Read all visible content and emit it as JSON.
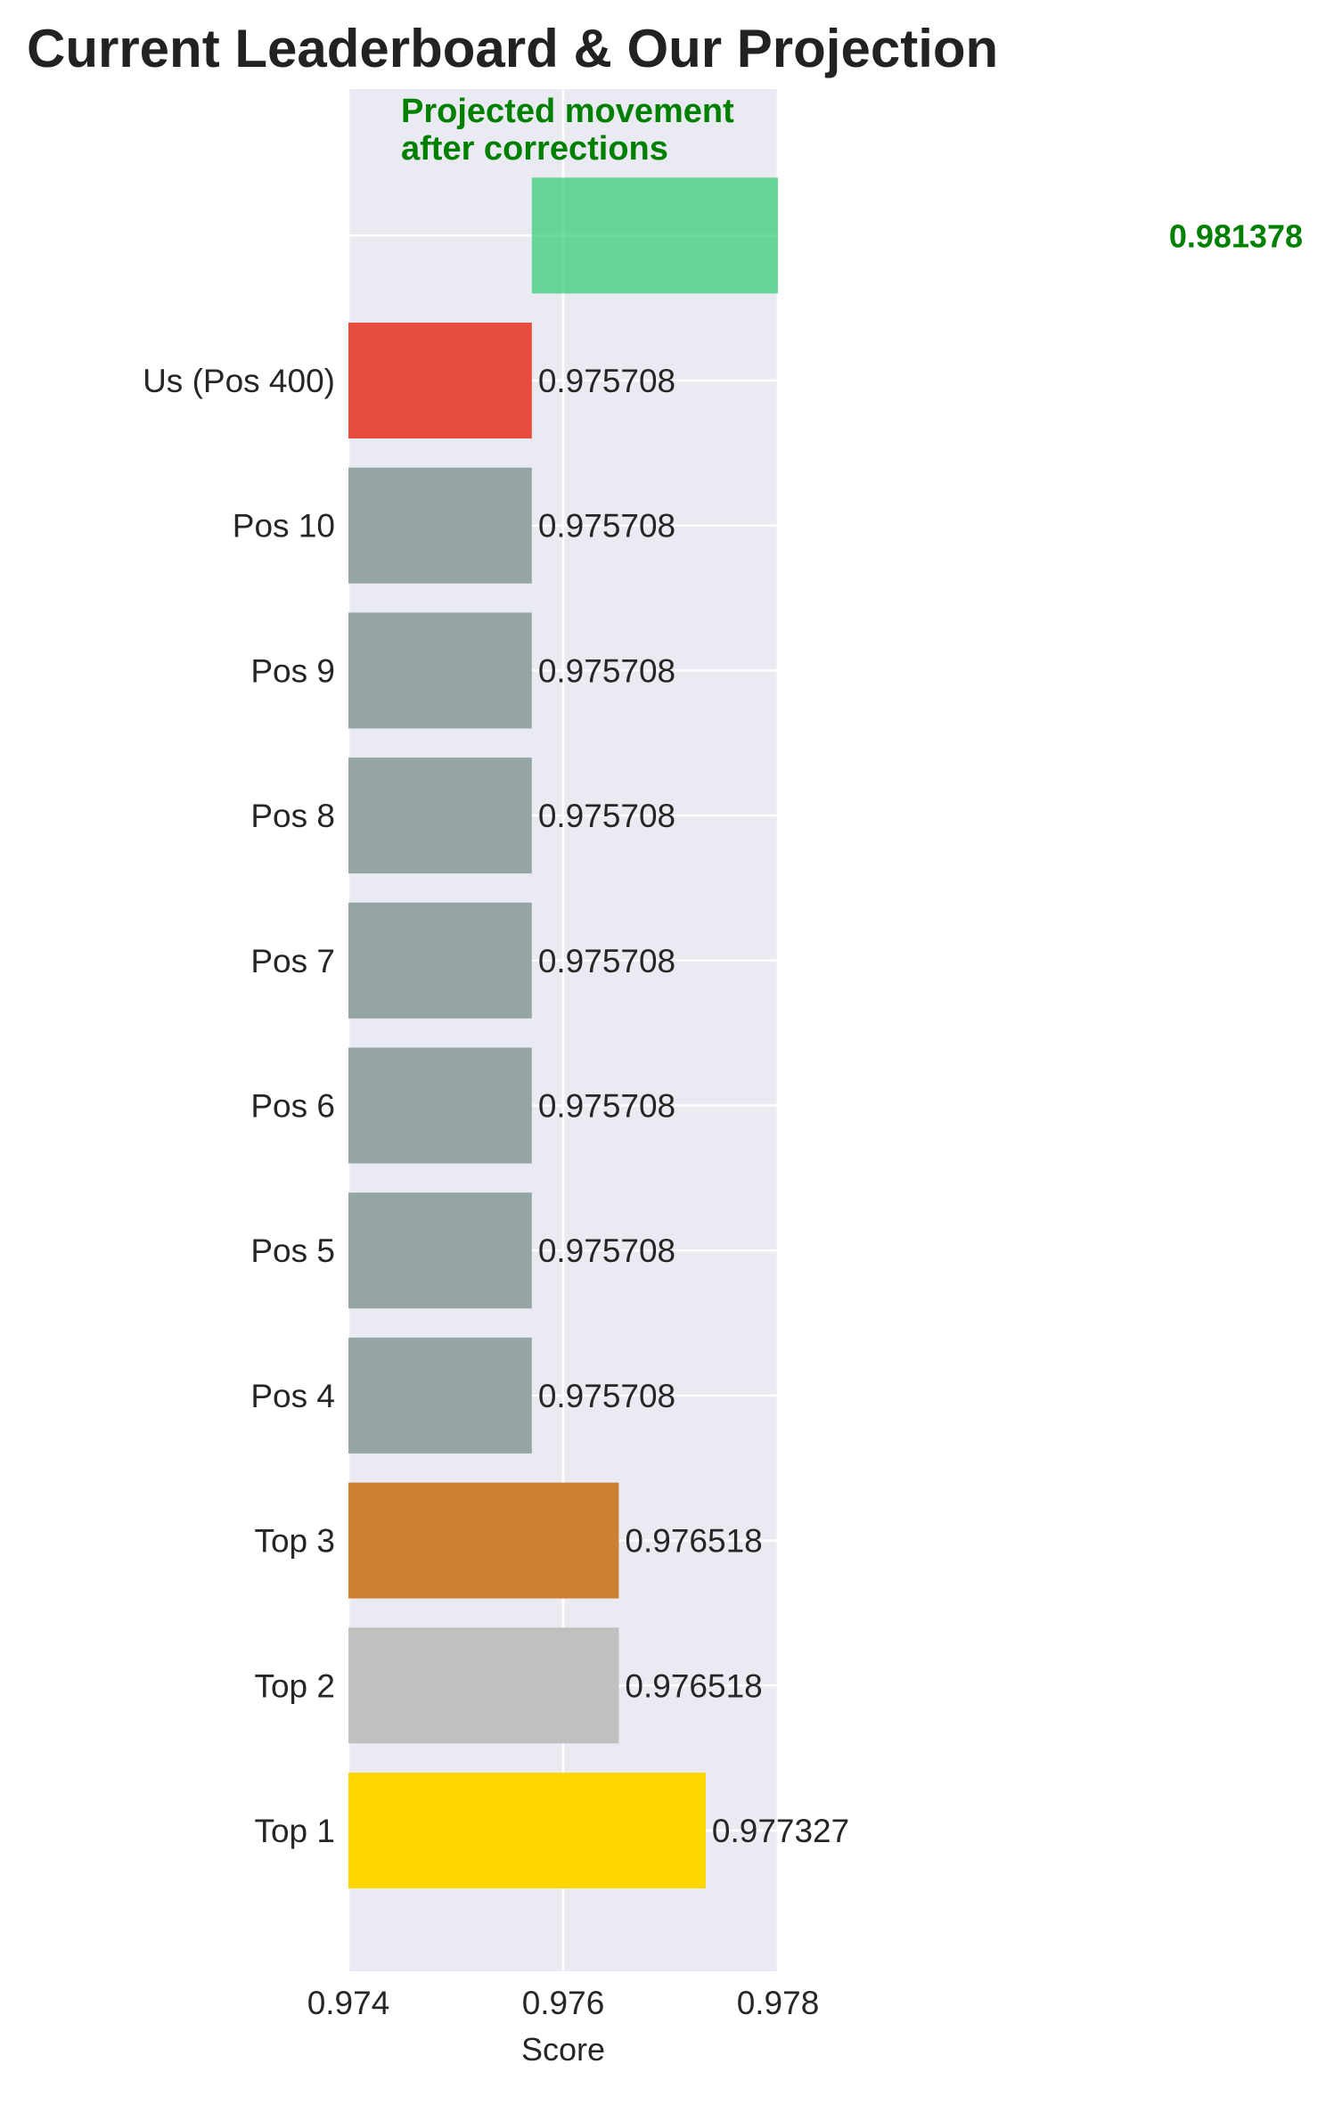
{
  "chart_data": {
    "type": "bar",
    "orientation": "horizontal",
    "title": "Current Leaderboard & Our Projection",
    "xlabel": "Score",
    "ylabel": "",
    "xlim": [
      0.974,
      0.978
    ],
    "xticks": [
      "0.974",
      "0.976",
      "0.978"
    ],
    "grid": true,
    "background": "#eaeaf2",
    "categories": [
      "Top 1",
      "Top 2",
      "Top 3",
      "Pos 4",
      "Pos 5",
      "Pos 6",
      "Pos 7",
      "Pos 8",
      "Pos 9",
      "Pos 10",
      "Us (Pos 400)",
      ""
    ],
    "values": [
      0.977327,
      0.976518,
      0.976518,
      0.975708,
      0.975708,
      0.975708,
      0.975708,
      0.975708,
      0.975708,
      0.975708,
      0.975708,
      0.981378
    ],
    "value_labels": [
      "0.977327",
      "0.976518",
      "0.976518",
      "0.975708",
      "0.975708",
      "0.975708",
      "0.975708",
      "0.975708",
      "0.975708",
      "0.975708",
      "0.975708",
      "0.981378"
    ],
    "colors": [
      "#ffd700",
      "#c0c0c0",
      "#cd7f32",
      "#95a5a6",
      "#95a5a6",
      "#95a5a6",
      "#95a5a6",
      "#95a5a6",
      "#95a5a6",
      "#95a5a6",
      "#e74c3c",
      "#2ecc71"
    ],
    "projection_color": "#008000",
    "annotation": {
      "text_line1": "Projected movement",
      "text_line2": "after corrections"
    }
  }
}
